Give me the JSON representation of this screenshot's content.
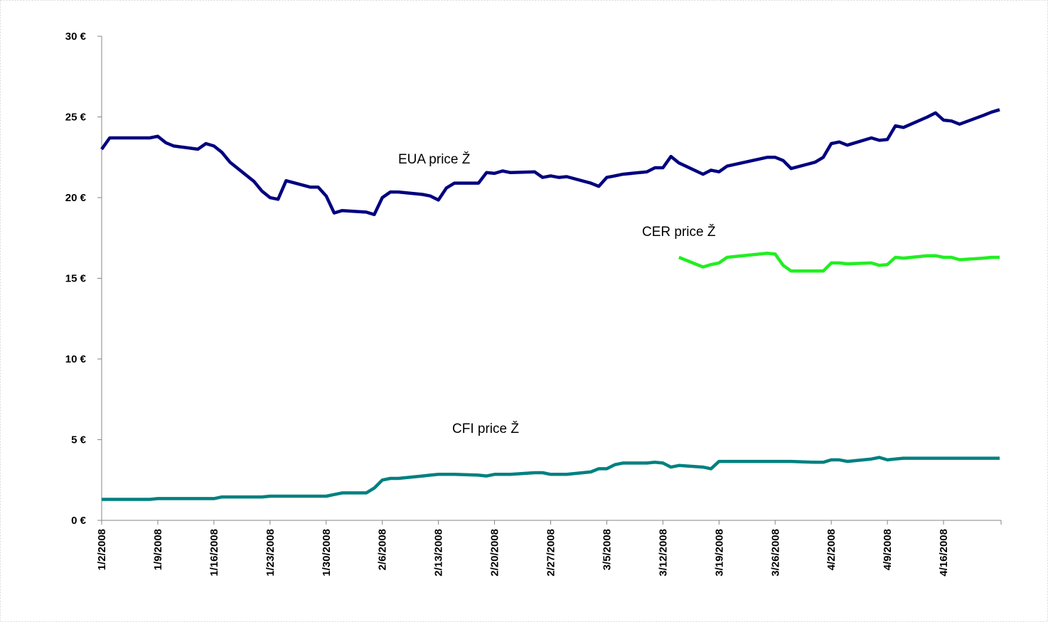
{
  "chart_data": {
    "type": "line",
    "x": [
      "1/2/2008",
      "1/3/2008",
      "1/4/2008",
      "1/7/2008",
      "1/8/2008",
      "1/9/2008",
      "1/10/2008",
      "1/11/2008",
      "1/14/2008",
      "1/15/2008",
      "1/16/2008",
      "1/17/2008",
      "1/18/2008",
      "1/21/2008",
      "1/22/2008",
      "1/23/2008",
      "1/24/2008",
      "1/25/2008",
      "1/28/2008",
      "1/29/2008",
      "1/30/2008",
      "1/31/2008",
      "2/1/2008",
      "2/4/2008",
      "2/5/2008",
      "2/6/2008",
      "2/7/2008",
      "2/8/2008",
      "2/11/2008",
      "2/12/2008",
      "2/13/2008",
      "2/14/2008",
      "2/15/2008",
      "2/18/2008",
      "2/19/2008",
      "2/20/2008",
      "2/21/2008",
      "2/22/2008",
      "2/25/2008",
      "2/26/2008",
      "2/27/2008",
      "2/28/2008",
      "2/29/2008",
      "3/3/2008",
      "3/4/2008",
      "3/5/2008",
      "3/6/2008",
      "3/7/2008",
      "3/10/2008",
      "3/11/2008",
      "3/12/2008",
      "3/13/2008",
      "3/14/2008",
      "3/17/2008",
      "3/18/2008",
      "3/19/2008",
      "3/20/2008",
      "3/25/2008",
      "3/26/2008",
      "3/27/2008",
      "3/28/2008",
      "3/31/2008",
      "4/1/2008",
      "4/2/2008",
      "4/3/2008",
      "4/4/2008",
      "4/7/2008",
      "4/8/2008",
      "4/9/2008",
      "4/10/2008",
      "4/11/2008",
      "4/14/2008",
      "4/15/2008",
      "4/16/2008",
      "4/17/2008",
      "4/18/2008",
      "4/21/2008",
      "4/22/2008",
      "4/23/2008"
    ],
    "series": [
      {
        "name": "EUA price",
        "color": "#00007f",
        "values": [
          23.0,
          23.7,
          23.7,
          23.7,
          23.7,
          23.8,
          23.4,
          23.2,
          23.0,
          23.35,
          23.2,
          22.8,
          22.2,
          21.0,
          20.4,
          20.0,
          19.9,
          21.05,
          20.65,
          20.65,
          20.1,
          19.05,
          19.2,
          19.1,
          18.95,
          20.0,
          20.35,
          20.35,
          20.2,
          20.1,
          19.85,
          20.6,
          20.9,
          20.9,
          21.55,
          21.5,
          21.65,
          21.55,
          21.6,
          21.25,
          21.35,
          21.25,
          21.3,
          20.9,
          20.7,
          21.25,
          21.35,
          21.45,
          21.6,
          21.85,
          21.85,
          22.55,
          22.15,
          21.45,
          21.7,
          21.6,
          21.95,
          22.5,
          22.5,
          22.3,
          21.8,
          22.2,
          22.5,
          23.35,
          23.45,
          23.25,
          23.7,
          23.55,
          23.6,
          24.45,
          24.35,
          25.0,
          25.25,
          24.8,
          24.75,
          24.55,
          25.1,
          25.3,
          25.45
        ]
      },
      {
        "name": "CER price",
        "color": "#22ee22",
        "values": [
          null,
          null,
          null,
          null,
          null,
          null,
          null,
          null,
          null,
          null,
          null,
          null,
          null,
          null,
          null,
          null,
          null,
          null,
          null,
          null,
          null,
          null,
          null,
          null,
          null,
          null,
          null,
          null,
          null,
          null,
          null,
          null,
          null,
          null,
          null,
          null,
          null,
          null,
          null,
          null,
          null,
          null,
          null,
          null,
          null,
          null,
          null,
          null,
          null,
          null,
          null,
          null,
          16.3,
          15.7,
          15.85,
          15.95,
          16.3,
          16.55,
          16.5,
          15.8,
          15.45,
          15.45,
          15.45,
          15.95,
          15.95,
          15.9,
          15.95,
          15.8,
          15.85,
          16.3,
          16.25,
          16.4,
          16.4,
          16.3,
          16.3,
          16.15,
          16.25,
          16.3,
          16.3
        ]
      },
      {
        "name": "CFI price",
        "color": "#008080",
        "values": [
          1.3,
          1.3,
          1.3,
          1.3,
          1.3,
          1.35,
          1.35,
          1.35,
          1.35,
          1.35,
          1.35,
          1.45,
          1.45,
          1.45,
          1.45,
          1.5,
          1.5,
          1.5,
          1.5,
          1.5,
          1.5,
          1.6,
          1.7,
          1.7,
          2.0,
          2.5,
          2.6,
          2.6,
          2.75,
          2.8,
          2.85,
          2.85,
          2.85,
          2.8,
          2.75,
          2.85,
          2.85,
          2.85,
          2.95,
          2.95,
          2.85,
          2.85,
          2.85,
          3.0,
          3.2,
          3.2,
          3.45,
          3.55,
          3.55,
          3.6,
          3.55,
          3.3,
          3.4,
          3.3,
          3.2,
          3.65,
          3.65,
          3.65,
          3.65,
          3.65,
          3.65,
          3.6,
          3.6,
          3.75,
          3.75,
          3.65,
          3.8,
          3.9,
          3.75,
          3.8,
          3.85,
          3.85,
          3.85,
          3.85,
          3.85,
          3.85,
          3.85,
          3.85,
          3.85
        ]
      }
    ],
    "annotations": [
      "EUA price Ž",
      "CER price Ž",
      "CFI price Ž"
    ],
    "xlim": [
      "1/2/2008",
      "4/23/2008"
    ],
    "xticks": [
      "1/2/2008",
      "1/9/2008",
      "1/16/2008",
      "1/23/2008",
      "1/30/2008",
      "2/6/2008",
      "2/13/2008",
      "2/20/2008",
      "2/27/2008",
      "3/5/2008",
      "3/12/2008",
      "3/19/2008",
      "3/26/2008",
      "4/2/2008",
      "4/9/2008",
      "4/16/2008"
    ],
    "ylim": [
      0,
      30
    ],
    "yticks": [
      {
        "value": 0,
        "label": "0 €"
      },
      {
        "value": 5,
        "label": "5 €"
      },
      {
        "value": 10,
        "label": "10 €"
      },
      {
        "value": 15,
        "label": "15 €"
      },
      {
        "value": 20,
        "label": "20 €"
      },
      {
        "value": 25,
        "label": "25 €"
      },
      {
        "value": 30,
        "label": "30 €"
      }
    ],
    "grid": false
  }
}
